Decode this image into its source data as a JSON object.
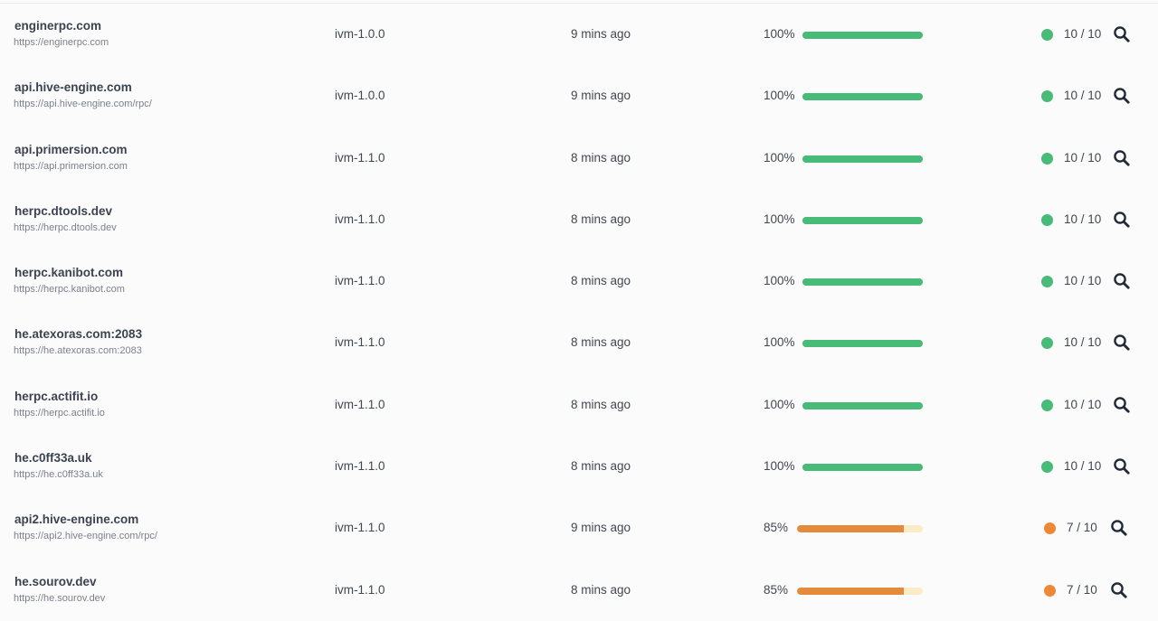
{
  "colors": {
    "ok_bar": "#48bb78",
    "ok_dot": "#48bb78",
    "warn_bar": "#e5893a",
    "warn_track": "#fdebc8",
    "warn_dot": "#ed8936",
    "icon": "#1f2937"
  },
  "rows": [
    {
      "name": "enginerpc.com",
      "url": "https://enginerpc.com",
      "version": "ivm-1.0.0",
      "time": "9 mins ago",
      "percent": "100%",
      "progress": 100,
      "status": "ok",
      "score": "10 / 10",
      "icon": "search-icon"
    },
    {
      "name": "api.hive-engine.com",
      "url": "https://api.hive-engine.com/rpc/",
      "version": "ivm-1.0.0",
      "time": "9 mins ago",
      "percent": "100%",
      "progress": 100,
      "status": "ok",
      "score": "10 / 10",
      "icon": "search-icon"
    },
    {
      "name": "api.primersion.com",
      "url": "https://api.primersion.com",
      "version": "ivm-1.1.0",
      "time": "8 mins ago",
      "percent": "100%",
      "progress": 100,
      "status": "ok",
      "score": "10 / 10",
      "icon": "search-icon"
    },
    {
      "name": "herpc.dtools.dev",
      "url": "https://herpc.dtools.dev",
      "version": "ivm-1.1.0",
      "time": "8 mins ago",
      "percent": "100%",
      "progress": 100,
      "status": "ok",
      "score": "10 / 10",
      "icon": "search-icon"
    },
    {
      "name": "herpc.kanibot.com",
      "url": "https://herpc.kanibot.com",
      "version": "ivm-1.1.0",
      "time": "8 mins ago",
      "percent": "100%",
      "progress": 100,
      "status": "ok",
      "score": "10 / 10",
      "icon": "search-icon"
    },
    {
      "name": "he.atexoras.com:2083",
      "url": "https://he.atexoras.com:2083",
      "version": "ivm-1.1.0",
      "time": "8 mins ago",
      "percent": "100%",
      "progress": 100,
      "status": "ok",
      "score": "10 / 10",
      "icon": "search-icon"
    },
    {
      "name": "herpc.actifit.io",
      "url": "https://herpc.actifit.io",
      "version": "ivm-1.1.0",
      "time": "8 mins ago",
      "percent": "100%",
      "progress": 100,
      "status": "ok",
      "score": "10 / 10",
      "icon": "search-icon"
    },
    {
      "name": "he.c0ff33a.uk",
      "url": "https://he.c0ff33a.uk",
      "version": "ivm-1.1.0",
      "time": "8 mins ago",
      "percent": "100%",
      "progress": 100,
      "status": "ok",
      "score": "10 / 10",
      "icon": "search-icon"
    },
    {
      "name": "api2.hive-engine.com",
      "url": "https://api2.hive-engine.com/rpc/",
      "version": "ivm-1.1.0",
      "time": "9 mins ago",
      "percent": "85%",
      "progress": 85,
      "status": "warn",
      "score": "7 / 10",
      "icon": "search-icon"
    },
    {
      "name": "he.sourov.dev",
      "url": "https://he.sourov.dev",
      "version": "ivm-1.1.0",
      "time": "8 mins ago",
      "percent": "85%",
      "progress": 85,
      "status": "warn",
      "score": "7 / 10",
      "icon": "search-icon"
    }
  ]
}
